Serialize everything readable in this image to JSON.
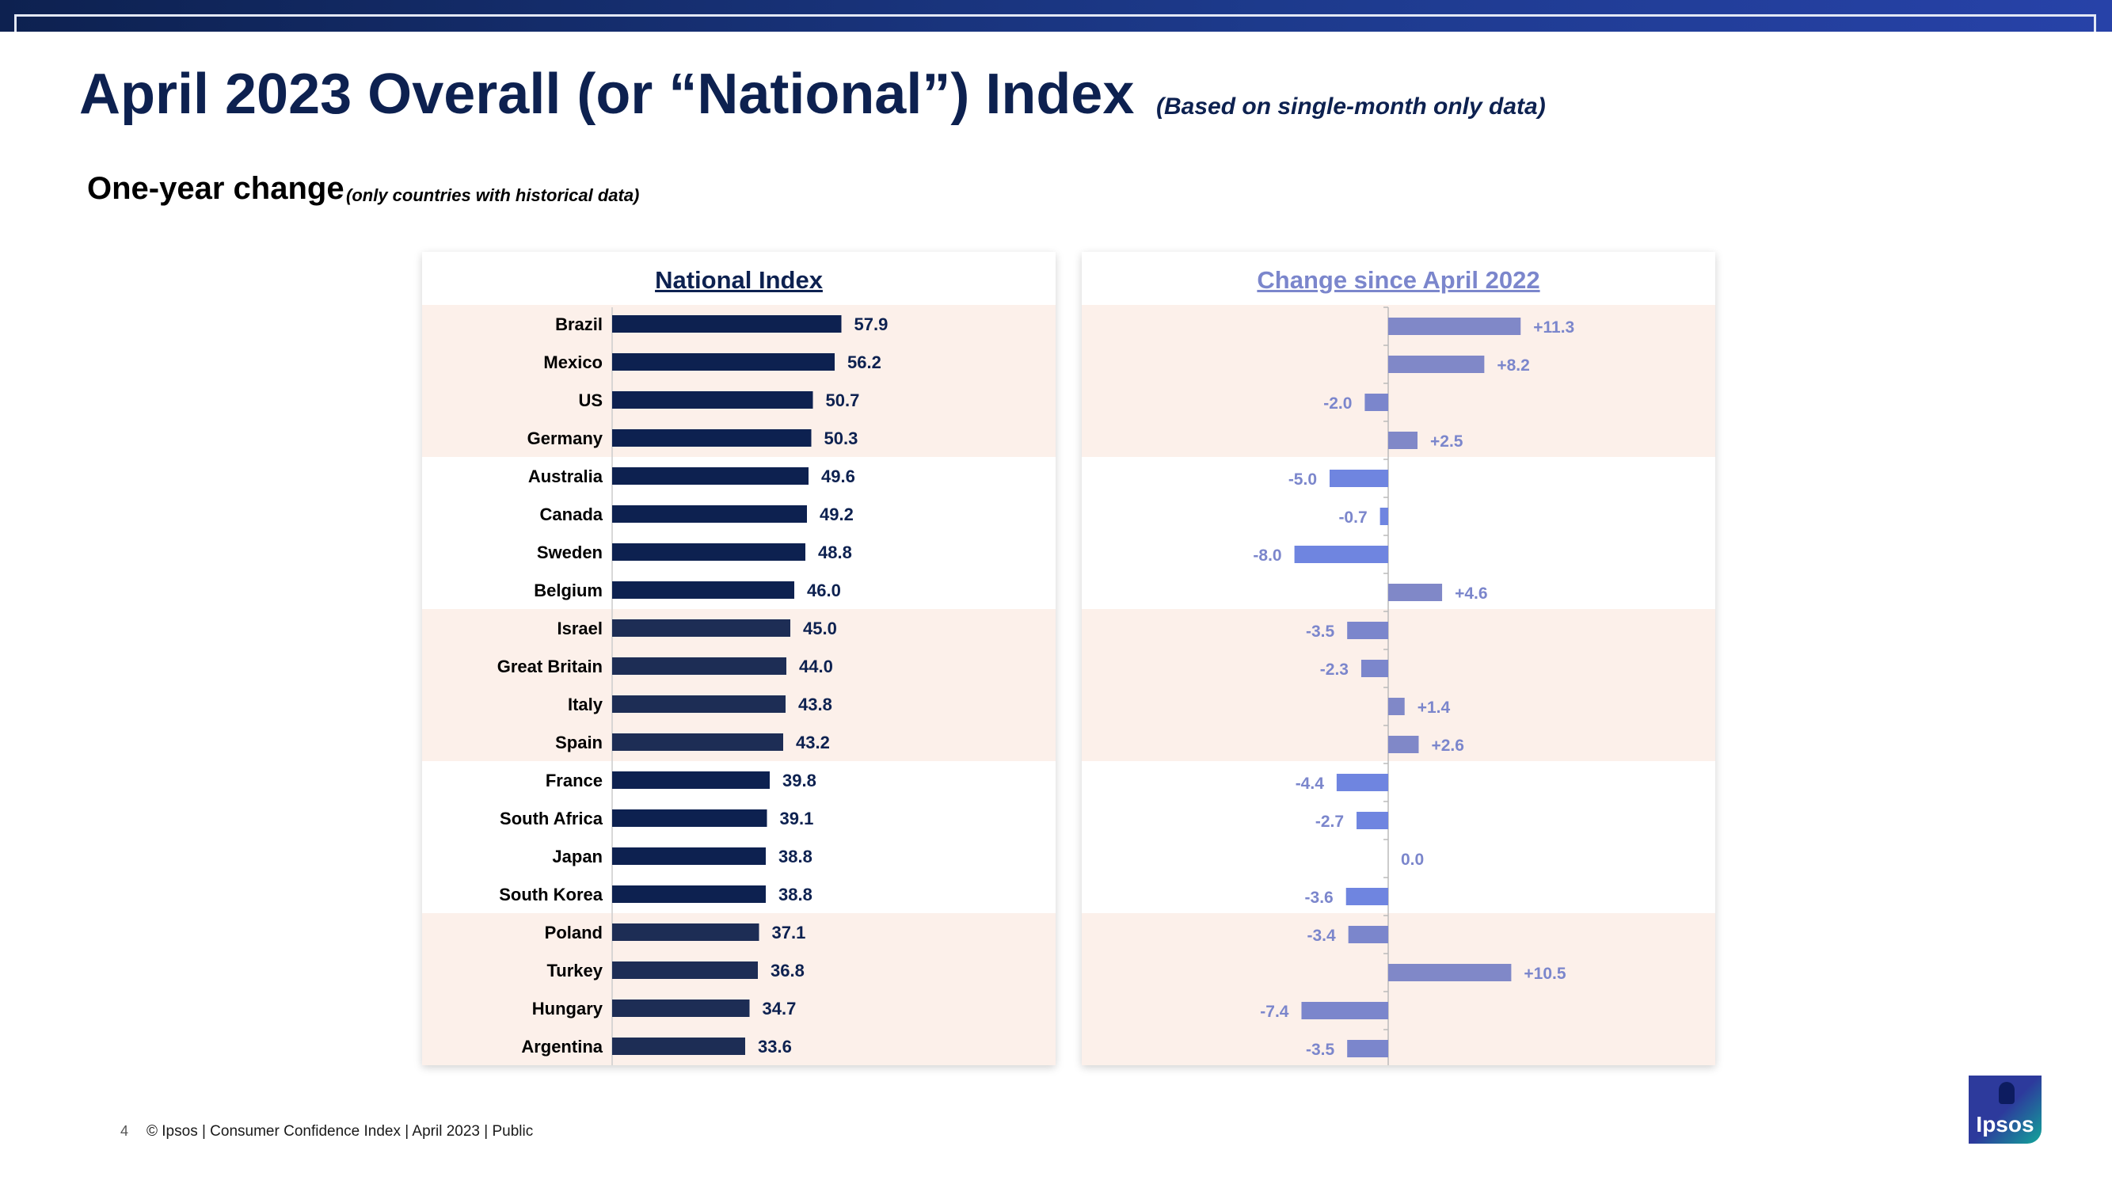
{
  "header": {
    "title": "April 2023 Overall (or “National”) Index",
    "title_note": "(Based on single-month only data)",
    "subtitle": "One-year change",
    "subtitle_note": "(only countries with historical data)"
  },
  "colors": {
    "navy": "#0d2150",
    "navy_mid": "#1d2d55",
    "change_pos": "#8088c8",
    "change_neg_light": "#7b86cc",
    "change_neg_bright": "#6f85e0",
    "band": "#fcf0ea"
  },
  "chart_data": [
    {
      "type": "bar",
      "orientation": "horizontal",
      "title": "National Index",
      "categories": [
        "Brazil",
        "Mexico",
        "US",
        "Germany",
        "Australia",
        "Canada",
        "Sweden",
        "Belgium",
        "Israel",
        "Great Britain",
        "Italy",
        "Spain",
        "France",
        "South Africa",
        "Japan",
        "South Korea",
        "Poland",
        "Turkey",
        "Hungary",
        "Argentina"
      ],
      "values": [
        57.9,
        56.2,
        50.7,
        50.3,
        49.6,
        49.2,
        48.8,
        46.0,
        45.0,
        44.0,
        43.8,
        43.2,
        39.8,
        39.1,
        38.8,
        38.8,
        37.1,
        36.8,
        34.7,
        33.6
      ],
      "labels": [
        "57.9",
        "56.2",
        "50.7",
        "50.3",
        "49.6",
        "49.2",
        "48.8",
        "46.0",
        "45.0",
        "44.0",
        "43.8",
        "43.2",
        "39.8",
        "39.1",
        "38.8",
        "38.8",
        "37.1",
        "36.8",
        "34.7",
        "33.6"
      ],
      "xlim": [
        0,
        70
      ],
      "grid": false
    },
    {
      "type": "bar",
      "orientation": "horizontal",
      "title": "Change since April 2022",
      "categories": [
        "Brazil",
        "Mexico",
        "US",
        "Germany",
        "Australia",
        "Canada",
        "Sweden",
        "Belgium",
        "Israel",
        "Great Britain",
        "Italy",
        "Spain",
        "France",
        "South Africa",
        "Japan",
        "South Korea",
        "Poland",
        "Turkey",
        "Hungary",
        "Argentina"
      ],
      "values": [
        11.3,
        8.2,
        -2.0,
        2.5,
        -5.0,
        -0.7,
        -8.0,
        4.6,
        -3.5,
        -2.3,
        1.4,
        2.6,
        -4.4,
        -2.7,
        0.0,
        -3.6,
        -3.4,
        10.5,
        -7.4,
        -3.5
      ],
      "labels": [
        "+11.3",
        "+8.2",
        "-2.0",
        "+2.5",
        "-5.0",
        "-0.7",
        "-8.0",
        "+4.6",
        "-3.5",
        "-2.3",
        "+1.4",
        "+2.6",
        "-4.4",
        "-2.7",
        "0.0",
        "-3.6",
        "-3.4",
        "+10.5",
        "-7.4",
        "-3.5"
      ],
      "xlim": [
        -30,
        25
      ],
      "grid": false
    }
  ],
  "footer": {
    "page": "4",
    "text": "© Ipsos | Consumer Confidence Index | April 2023 | Public"
  },
  "logo": {
    "text": "Ipsos"
  }
}
